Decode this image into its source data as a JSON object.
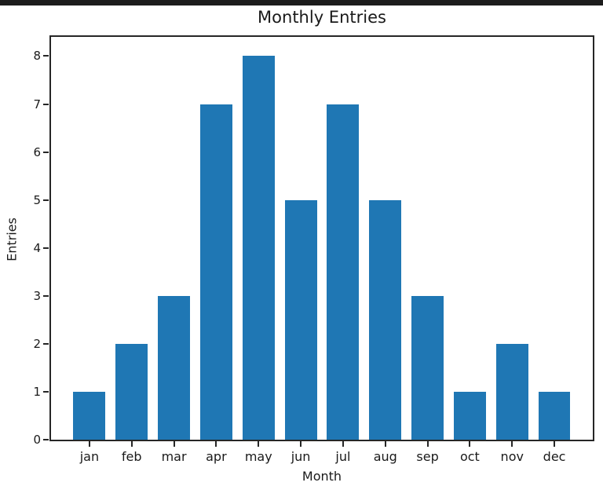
{
  "window": {
    "background": "#ffffff",
    "top_strip_color": "#1c1c1c"
  },
  "chart_data": {
    "type": "bar",
    "title": "Monthly Entries",
    "xlabel": "Month",
    "ylabel": "Entries",
    "categories": [
      "jan",
      "feb",
      "mar",
      "apr",
      "may",
      "jun",
      "jul",
      "aug",
      "sep",
      "oct",
      "nov",
      "dec"
    ],
    "values": [
      1,
      2,
      3,
      7,
      8,
      5,
      7,
      5,
      3,
      1,
      2,
      1
    ],
    "yticks": [
      0,
      1,
      2,
      3,
      4,
      5,
      6,
      7,
      8
    ],
    "ylim": [
      0,
      8.4
    ],
    "grid": false,
    "bar_color": "#1f77b4",
    "axis_color": "#262626",
    "text_color": "#1a1a1a"
  }
}
